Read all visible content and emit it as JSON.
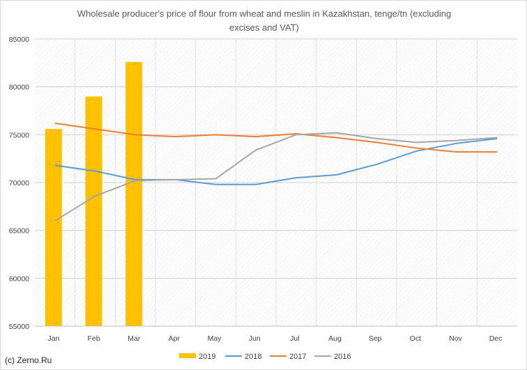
{
  "chart_data": {
    "type": "bar+line",
    "title_line1": "Wholesale producer's price of flour from wheat and meslin in Kazakhstan, tenge/tn (excluding",
    "title_line2": "excises and VAT)",
    "categories": [
      "Jan",
      "Feb",
      "Mar",
      "Apr",
      "May",
      "Jun",
      "Jul",
      "Aug",
      "Sep",
      "Oct",
      "Nov",
      "Dec"
    ],
    "ylim": [
      55000,
      85000
    ],
    "yticks": [
      "55000",
      "60000",
      "65000",
      "70000",
      "75000",
      "80000",
      "85000"
    ],
    "grid": "horizontal, hatched plot area",
    "legend_position": "bottom",
    "series": [
      {
        "name": "2019",
        "kind": "bar",
        "color": "#ffc000",
        "values": [
          75600,
          79000,
          82600,
          null,
          null,
          null,
          null,
          null,
          null,
          null,
          null,
          null
        ]
      },
      {
        "name": "2018",
        "kind": "line",
        "color": "#5b9bd5",
        "values": [
          71800,
          71200,
          70300,
          70300,
          69800,
          69800,
          70500,
          70800,
          71900,
          73300,
          74100,
          74600
        ]
      },
      {
        "name": "2017",
        "kind": "line",
        "color": "#ed7d31",
        "values": [
          76200,
          75600,
          75000,
          74800,
          75000,
          74800,
          75100,
          74700,
          74200,
          73600,
          73200,
          73200
        ]
      },
      {
        "name": "2016",
        "kind": "line",
        "color": "#a5a5a5",
        "values": [
          66000,
          68600,
          70200,
          70300,
          70400,
          73400,
          75000,
          75200,
          74600,
          74200,
          74400,
          74700
        ]
      }
    ]
  },
  "credit": "(c) Zerno.Ru"
}
